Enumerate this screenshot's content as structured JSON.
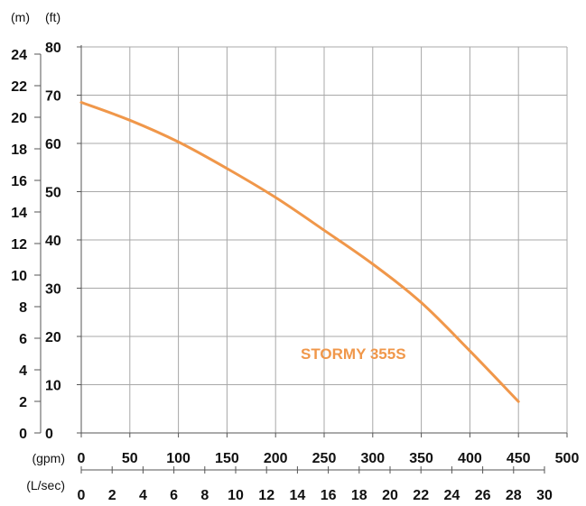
{
  "chart_data": {
    "type": "line",
    "title": "",
    "units": {
      "head_m": "(m)",
      "head_ft": "(ft)",
      "flow_gpm": "(gpm)",
      "flow_lsec": "(L/sec)"
    },
    "x_gpm_ticks": [
      "0",
      "50",
      "100",
      "150",
      "200",
      "250",
      "300",
      "350",
      "400",
      "450",
      "500"
    ],
    "x_lsec_ticks": [
      "0",
      "2",
      "4",
      "6",
      "8",
      "10",
      "12",
      "14",
      "16",
      "18",
      "20",
      "22",
      "24",
      "26",
      "28",
      "30"
    ],
    "y_ft_ticks": [
      "0",
      "10",
      "20",
      "30",
      "40",
      "50",
      "60",
      "70",
      "80"
    ],
    "y_m_ticks": [
      "0",
      "2",
      "4",
      "6",
      "8",
      "10",
      "12",
      "14",
      "16",
      "18",
      "20",
      "22",
      "24"
    ],
    "xlim_gpm": [
      0,
      500
    ],
    "ylim_ft": [
      0,
      80
    ],
    "grid": true,
    "series": [
      {
        "name": "STORMY 355S",
        "color": "#f0974a",
        "x_gpm": [
          0,
          50,
          100,
          150,
          200,
          250,
          300,
          350,
          400,
          450
        ],
        "y_ft": [
          68.5,
          64.8,
          60.3,
          54.8,
          48.8,
          42.0,
          35.0,
          27.0,
          17.0,
          6.5
        ]
      }
    ]
  }
}
